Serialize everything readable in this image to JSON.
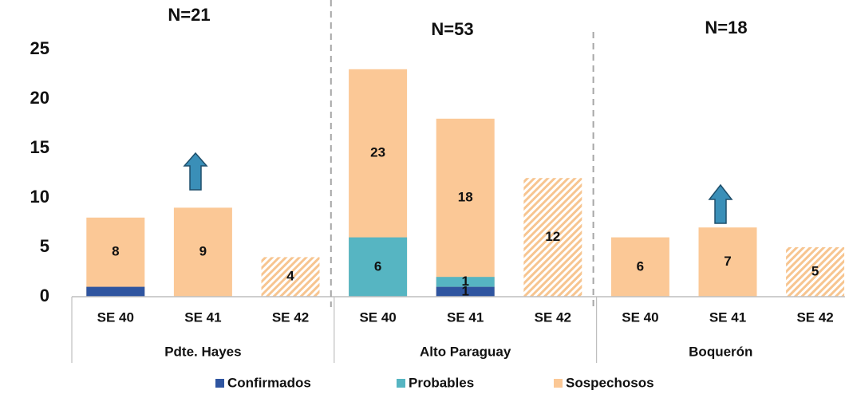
{
  "chart_data": {
    "type": "bar",
    "categories": [
      "SE 40",
      "SE 41",
      "SE 42",
      "SE 40",
      "SE 41",
      "SE 42",
      "SE 40",
      "SE 41",
      "SE 42"
    ],
    "groups": [
      {
        "label": "Pdte. Hayes",
        "n": "N=21"
      },
      {
        "label": "Alto Paraguay",
        "n": "N=53"
      },
      {
        "label": "Boquerón",
        "n": "N=18"
      }
    ],
    "series": [
      {
        "name": "Confirmados",
        "color": "#2f55a0",
        "values": [
          1,
          null,
          null,
          null,
          1,
          null,
          null,
          null,
          null
        ],
        "value_labels": [
          null,
          null,
          null,
          null,
          "1",
          null,
          null,
          null,
          null
        ]
      },
      {
        "name": "Probables",
        "color": "#56b5c2",
        "values": [
          null,
          null,
          null,
          6,
          1,
          null,
          null,
          null,
          null
        ],
        "value_labels": [
          null,
          null,
          null,
          "6",
          "1",
          null,
          null,
          null,
          null
        ]
      },
      {
        "name": "Sospechosos",
        "color": "#fbc896",
        "behind": true,
        "values": [
          8,
          9,
          4,
          23,
          18,
          12,
          6,
          7,
          5
        ],
        "hatched": [
          false,
          false,
          true,
          false,
          false,
          true,
          false,
          false,
          true
        ]
      }
    ],
    "ylim": [
      0,
      25
    ],
    "yticks": [
      0,
      5,
      10,
      15,
      20,
      25
    ],
    "grid": false,
    "legend": "bottom"
  }
}
